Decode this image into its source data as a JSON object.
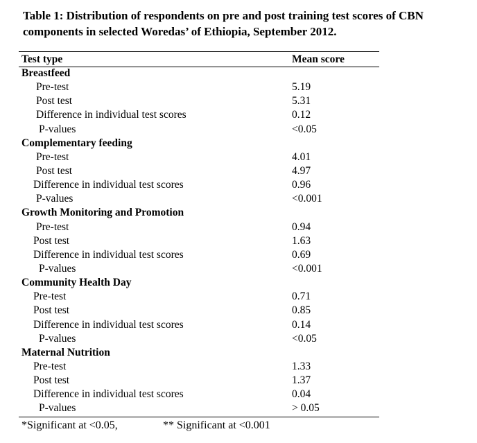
{
  "caption": {
    "line1": "Table 1: Distribution of respondents on pre and post training test scores of CBN",
    "line2": "components in selected  Woredas’ of Ethiopia, September 2012."
  },
  "table": {
    "headers": [
      "Test type",
      "Mean score"
    ],
    "sections": [
      {
        "title": "Breastfeed",
        "rows": [
          {
            "label": "Pre-test",
            "value": "5.19"
          },
          {
            "label": "Post test",
            "value": "5.31"
          },
          {
            "label": "Difference  in individual test scores",
            "value": "0.12"
          },
          {
            "label": "P-values",
            "value": "<0.05"
          }
        ]
      },
      {
        "title": "Complementary feeding",
        "rows": [
          {
            "label": "Pre-test",
            "value": "4.01"
          },
          {
            "label": "Post test",
            "value": "4.97"
          },
          {
            "label": "Difference  in individual test scores",
            "value": "0.96"
          },
          {
            "label": "P-values",
            "value": "<0.001"
          }
        ]
      },
      {
        "title": "Growth Monitoring and Promotion",
        "rows": [
          {
            "label": "Pre-test",
            "value": "0.94"
          },
          {
            "label": "Post test",
            "value": "1.63"
          },
          {
            "label": "Difference  in individual test scores",
            "value": "0.69"
          },
          {
            "label": "P-values",
            "value": "<0.001"
          }
        ]
      },
      {
        "title": "Community Health Day",
        "rows": [
          {
            "label": "Pre-test",
            "value": "0.71"
          },
          {
            "label": "Post test",
            "value": "0.85"
          },
          {
            "label": "Difference  in individual test scores",
            "value": "0.14"
          },
          {
            "label": "P-values",
            "value": "<0.05"
          }
        ]
      },
      {
        "title": "Maternal Nutrition",
        "rows": [
          {
            "label": "Pre-test",
            "value": "1.33"
          },
          {
            "label": "Post test",
            "value": "1.37"
          },
          {
            "label": "Difference  in individual test scores",
            "value": "0.04"
          },
          {
            "label": "P-values",
            "value": "> 0.05"
          }
        ]
      }
    ]
  },
  "footnotes": {
    "significant_05": "*Significant at <0.05,",
    "significant_001": "** Significant at <0.001"
  }
}
